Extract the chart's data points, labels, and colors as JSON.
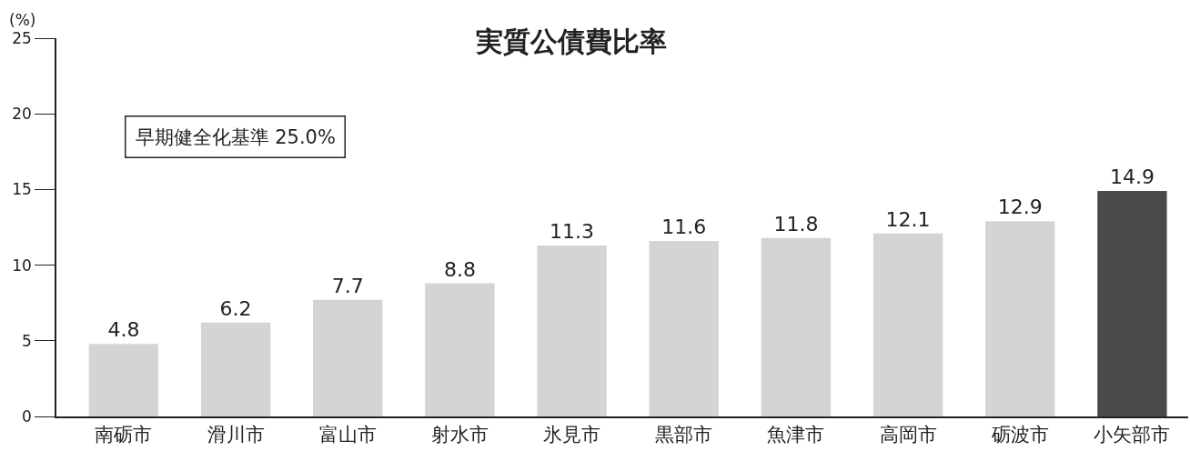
{
  "chart_data": {
    "type": "bar",
    "title": "実質公債費比率",
    "ylabel": "(%)",
    "categories": [
      "南砺市",
      "滑川市",
      "富山市",
      "射水市",
      "氷見市",
      "黒部市",
      "魚津市",
      "高岡市",
      "砺波市",
      "小矢部市"
    ],
    "values": [
      4.8,
      6.2,
      7.7,
      8.8,
      11.3,
      11.6,
      11.8,
      12.1,
      12.9,
      14.9
    ],
    "colors": [
      "#d4d4d4",
      "#d4d4d4",
      "#d4d4d4",
      "#d4d4d4",
      "#d4d4d4",
      "#d4d4d4",
      "#d4d4d4",
      "#d4d4d4",
      "#d4d4d4",
      "#4a4a4a"
    ],
    "ylim": [
      0,
      25
    ],
    "yticks": [
      0,
      5,
      10,
      15,
      20,
      25
    ],
    "grid": false,
    "data_labels": true,
    "annotations": [
      "早期健全化基準 25.0%"
    ]
  }
}
